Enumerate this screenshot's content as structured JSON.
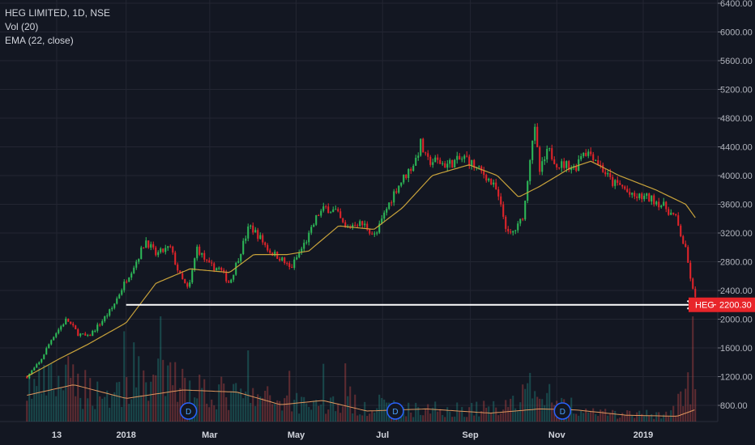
{
  "legend": {
    "symbol": "HEG LIMITED, 1D, NSE",
    "volume": "Vol (20)",
    "ema": "EMA (22, close)"
  },
  "colors": {
    "background": "#131722",
    "grid": "#232632",
    "up": "#26a69a",
    "down": "#ef5350",
    "candle_up": "#2ebd59",
    "candle_down": "#e8252a",
    "ema": "#c9a33b",
    "vol_ma": "#e0975e",
    "arrow": "#ffffff",
    "badge": "#e8252a",
    "event": "#2962ff"
  },
  "chart_data": {
    "type": "candlestick",
    "yaxis": {
      "ticks": [
        6400,
        6000,
        5600,
        5200,
        4800,
        4400,
        4000,
        3600,
        3200,
        2800,
        2400,
        2000,
        1600,
        1200,
        800
      ],
      "tick_labels": [
        "6400.00",
        "6000.00",
        "5600.00",
        "5200.00",
        "4800.00",
        "4400.00",
        "4000.00",
        "3600.00",
        "3200.00",
        "2800.00",
        "2400.00",
        "2000.00",
        "1600.00",
        "1200.00",
        "800.00"
      ],
      "side": "right"
    },
    "xaxis": {
      "tick_labels": [
        "13",
        "2018",
        "Mar",
        "May",
        "Jul",
        "Sep",
        "Nov",
        "2019"
      ],
      "tick_dates": [
        "2017-11-13",
        "2018-01-01",
        "2018-03-01",
        "2018-05-01",
        "2018-07-01",
        "2018-09-01",
        "2018-11-01",
        "2019-01-01"
      ]
    },
    "last_price": {
      "symbol": "HEG",
      "value": 2200.3,
      "label": "2200.30"
    },
    "horizontal_line": {
      "value": 2200,
      "start": "2018-01-01",
      "end": "2019-02-08",
      "arrow": "right"
    },
    "price_path": [
      [
        "2017-10-23",
        1200
      ],
      [
        "2017-11-01",
        1400
      ],
      [
        "2017-11-10",
        1750
      ],
      [
        "2017-11-20",
        2000
      ],
      [
        "2017-11-28",
        1800
      ],
      [
        "2017-12-05",
        1750
      ],
      [
        "2017-12-14",
        1950
      ],
      [
        "2017-12-22",
        2150
      ],
      [
        "2018-01-01",
        2550
      ],
      [
        "2018-01-08",
        2800
      ],
      [
        "2018-01-15",
        3100
      ],
      [
        "2018-01-22",
        2900
      ],
      [
        "2018-02-01",
        3000
      ],
      [
        "2018-02-08",
        2600
      ],
      [
        "2018-02-14",
        2400
      ],
      [
        "2018-02-20",
        3000
      ],
      [
        "2018-02-28",
        2750
      ],
      [
        "2018-03-08",
        2700
      ],
      [
        "2018-03-15",
        2500
      ],
      [
        "2018-03-22",
        2900
      ],
      [
        "2018-03-29",
        3300
      ],
      [
        "2018-04-05",
        3150
      ],
      [
        "2018-04-12",
        2950
      ],
      [
        "2018-04-20",
        2850
      ],
      [
        "2018-04-27",
        2700
      ],
      [
        "2018-05-04",
        2950
      ],
      [
        "2018-05-11",
        3200
      ],
      [
        "2018-05-16",
        3450
      ],
      [
        "2018-05-22",
        3550
      ],
      [
        "2018-05-29",
        3500
      ],
      [
        "2018-06-05",
        3250
      ],
      [
        "2018-06-12",
        3350
      ],
      [
        "2018-06-19",
        3300
      ],
      [
        "2018-06-26",
        3150
      ],
      [
        "2018-07-03",
        3500
      ],
      [
        "2018-07-10",
        3800
      ],
      [
        "2018-07-17",
        4000
      ],
      [
        "2018-07-24",
        4200
      ],
      [
        "2018-07-28",
        4450
      ],
      [
        "2018-08-01",
        4200
      ],
      [
        "2018-08-08",
        4200
      ],
      [
        "2018-08-15",
        4150
      ],
      [
        "2018-08-22",
        4200
      ],
      [
        "2018-08-29",
        4250
      ],
      [
        "2018-09-05",
        4100
      ],
      [
        "2018-09-12",
        4000
      ],
      [
        "2018-09-19",
        3800
      ],
      [
        "2018-09-24",
        3450
      ],
      [
        "2018-09-28",
        3150
      ],
      [
        "2018-10-05",
        3300
      ],
      [
        "2018-10-09",
        3500
      ],
      [
        "2018-10-12",
        4100
      ],
      [
        "2018-10-16",
        4700
      ],
      [
        "2018-10-20",
        4050
      ],
      [
        "2018-10-26",
        4350
      ],
      [
        "2018-11-02",
        4150
      ],
      [
        "2018-11-09",
        4150
      ],
      [
        "2018-11-14",
        4100
      ],
      [
        "2018-11-19",
        4350
      ],
      [
        "2018-11-26",
        4300
      ],
      [
        "2018-12-03",
        4100
      ],
      [
        "2018-12-10",
        3900
      ],
      [
        "2018-12-17",
        3850
      ],
      [
        "2018-12-24",
        3700
      ],
      [
        "2019-01-02",
        3700
      ],
      [
        "2019-01-10",
        3650
      ],
      [
        "2019-01-17",
        3550
      ],
      [
        "2019-01-24",
        3400
      ],
      [
        "2019-01-31",
        2950
      ],
      [
        "2019-02-05",
        2400
      ],
      [
        "2019-02-08",
        2200
      ]
    ],
    "ema_path": [
      [
        "2017-10-23",
        1200
      ],
      [
        "2017-11-15",
        1450
      ],
      [
        "2017-12-05",
        1650
      ],
      [
        "2018-01-01",
        1950
      ],
      [
        "2018-01-22",
        2500
      ],
      [
        "2018-02-15",
        2700
      ],
      [
        "2018-03-15",
        2650
      ],
      [
        "2018-04-01",
        2900
      ],
      [
        "2018-04-25",
        2900
      ],
      [
        "2018-05-10",
        2950
      ],
      [
        "2018-05-31",
        3300
      ],
      [
        "2018-06-25",
        3250
      ],
      [
        "2018-07-15",
        3550
      ],
      [
        "2018-08-05",
        4000
      ],
      [
        "2018-08-31",
        4150
      ],
      [
        "2018-09-20",
        4000
      ],
      [
        "2018-10-05",
        3700
      ],
      [
        "2018-10-20",
        3850
      ],
      [
        "2018-11-10",
        4100
      ],
      [
        "2018-11-25",
        4200
      ],
      [
        "2018-12-15",
        4000
      ],
      [
        "2019-01-10",
        3800
      ],
      [
        "2019-01-31",
        3600
      ],
      [
        "2019-02-08",
        3380
      ]
    ],
    "volume_level_profile": [
      [
        "2017-10-23",
        0.45
      ],
      [
        "2017-11-20",
        0.55
      ],
      [
        "2017-12-20",
        0.35
      ],
      [
        "2018-01-15",
        0.6
      ],
      [
        "2018-02-15",
        0.5
      ],
      [
        "2018-03-15",
        0.35
      ],
      [
        "2018-04-15",
        0.3
      ],
      [
        "2018-05-20",
        0.25
      ],
      [
        "2018-07-01",
        0.2
      ],
      [
        "2018-08-01",
        0.15
      ],
      [
        "2018-09-15",
        0.18
      ],
      [
        "2018-10-15",
        0.35
      ],
      [
        "2018-11-15",
        0.12
      ],
      [
        "2018-12-15",
        0.1
      ],
      [
        "2019-01-20",
        0.1
      ],
      [
        "2019-02-08",
        0.6
      ]
    ],
    "volume_ma_profile": [
      [
        "2017-10-23",
        0.25
      ],
      [
        "2017-11-25",
        0.35
      ],
      [
        "2018-01-01",
        0.22
      ],
      [
        "2018-02-10",
        0.3
      ],
      [
        "2018-03-20",
        0.28
      ],
      [
        "2018-04-20",
        0.16
      ],
      [
        "2018-05-20",
        0.2
      ],
      [
        "2018-06-20",
        0.1
      ],
      [
        "2018-08-01",
        0.12
      ],
      [
        "2018-09-15",
        0.08
      ],
      [
        "2018-10-20",
        0.12
      ],
      [
        "2018-11-15",
        0.11
      ],
      [
        "2018-12-20",
        0.06
      ],
      [
        "2019-01-25",
        0.05
      ],
      [
        "2019-02-08",
        0.12
      ]
    ],
    "events": [
      {
        "date": "2018-02-14",
        "label": "D"
      },
      {
        "date": "2018-07-10",
        "label": "D"
      },
      {
        "date": "2018-11-05",
        "label": "D"
      }
    ]
  }
}
